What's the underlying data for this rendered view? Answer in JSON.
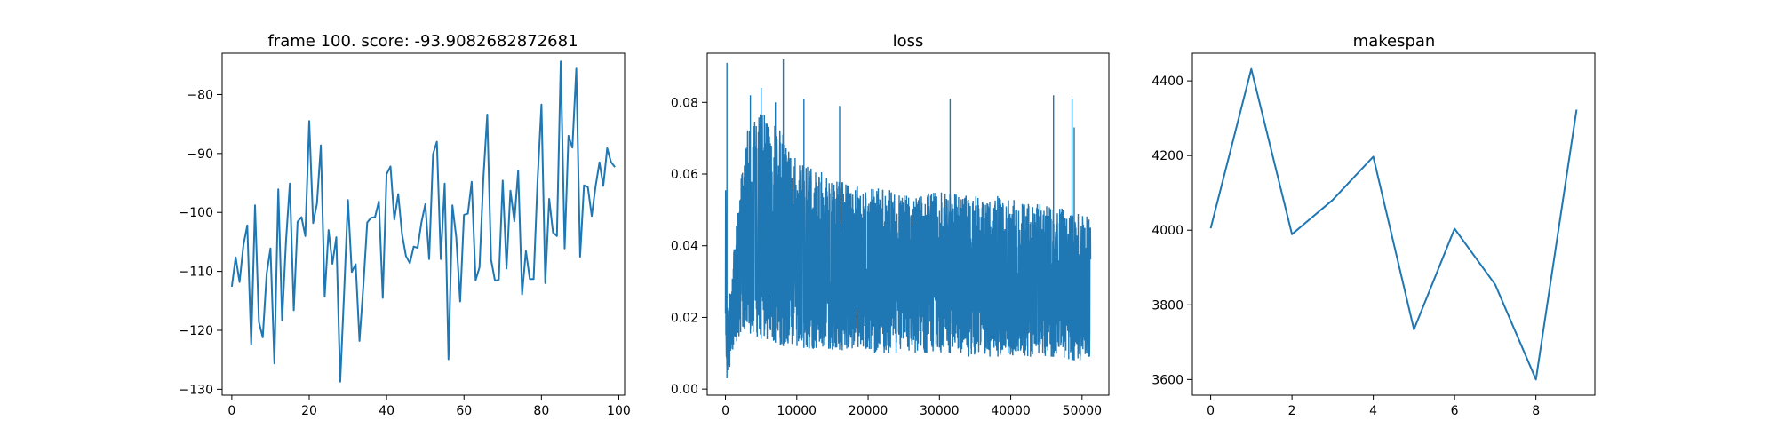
{
  "chart_data": [
    {
      "type": "line",
      "title": "frame 100. score: -93.9082682872681",
      "xlabel": "",
      "ylabel": "",
      "xlim": [
        -2.5,
        101.5
      ],
      "ylim": [
        -131,
        -73
      ],
      "xticks": [
        0,
        20,
        40,
        60,
        80,
        100
      ],
      "yticks": [
        -130,
        -120,
        -110,
        -100,
        -90,
        -80
      ],
      "series": [
        {
          "values": [
            -112.6,
            -107.6,
            -111.8,
            -105.5,
            -102.2,
            -122.4,
            -98.8,
            -118.6,
            -121.2,
            -110.4,
            -106.1,
            -125.6,
            -96.1,
            -118.3,
            -104.8,
            -95.1,
            -116.6,
            -101.6,
            -100.8,
            -104.0,
            -84.5,
            -101.8,
            -98.5,
            -88.6,
            -114.3,
            -103.0,
            -108.7,
            -104.2,
            -128.7,
            -113.9,
            -97.9,
            -110.1,
            -108.8,
            -121.8,
            -112.3,
            -101.7,
            -100.9,
            -100.8,
            -98.1,
            -114.5,
            -93.5,
            -92.2,
            -101.2,
            -96.9,
            -103.7,
            -107.4,
            -108.6,
            -105.8,
            -106.0,
            -101.7,
            -98.6,
            -107.9,
            -90.1,
            -88.0,
            -107.9,
            -95.1,
            -124.9,
            -98.8,
            -104.2,
            -115.1,
            -100.4,
            -100.2,
            -94.8,
            -111.5,
            -109.3,
            -94.3,
            -83.4,
            -108.0,
            -111.6,
            -111.4,
            -94.6,
            -109.5,
            -96.3,
            -101.5,
            -92.9,
            -113.9,
            -106.5,
            -111.3,
            -111.3,
            -94.6,
            -81.7,
            -112.0,
            -97.7,
            -103.4,
            -104.0,
            -74.4,
            -106.1,
            -87.0,
            -89.0,
            -75.6,
            -107.5,
            -95.4,
            -95.7,
            -100.6,
            -95.6,
            -91.5,
            -95.5,
            -89.1,
            -91.5,
            -92.3
          ]
        }
      ]
    },
    {
      "type": "line",
      "title": "loss",
      "xlabel": "",
      "ylabel": "",
      "xlim": [
        -2560,
        53760
      ],
      "ylim": [
        -0.0017,
        0.0937
      ],
      "xticks": [
        0,
        10000,
        20000,
        30000,
        40000,
        50000
      ],
      "yticks": [
        0.0,
        0.02,
        0.04,
        0.06,
        0.08
      ],
      "series": [
        {
          "note_envelope": "dense noisy signal; x = step, low/high = local envelope",
          "x": [
            0,
            150,
            300,
            600,
            1000,
            1500,
            2000,
            2500,
            3000,
            4000,
            5000,
            6000,
            7000,
            8000,
            9000,
            10000,
            12000,
            14000,
            16000,
            18000,
            20000,
            22000,
            24000,
            26000,
            28000,
            30000,
            32000,
            34000,
            36000,
            38000,
            40000,
            42000,
            44000,
            46000,
            48000,
            50000,
            51200
          ],
          "low": [
            0.004,
            0.003,
            0.003,
            0.006,
            0.009,
            0.012,
            0.014,
            0.016,
            0.016,
            0.015,
            0.014,
            0.013,
            0.013,
            0.012,
            0.012,
            0.012,
            0.011,
            0.011,
            0.011,
            0.01,
            0.01,
            0.01,
            0.01,
            0.01,
            0.01,
            0.01,
            0.01,
            0.009,
            0.009,
            0.009,
            0.009,
            0.009,
            0.009,
            0.009,
            0.008,
            0.008,
            0.008
          ],
          "high": [
            0.06,
            0.027,
            0.025,
            0.027,
            0.035,
            0.045,
            0.055,
            0.065,
            0.072,
            0.075,
            0.077,
            0.076,
            0.074,
            0.072,
            0.068,
            0.065,
            0.062,
            0.06,
            0.058,
            0.057,
            0.056,
            0.056,
            0.056,
            0.055,
            0.055,
            0.055,
            0.055,
            0.054,
            0.054,
            0.054,
            0.053,
            0.052,
            0.052,
            0.051,
            0.05,
            0.049,
            0.048
          ],
          "spikes": [
            [
              200,
              0.091
            ],
            [
              3500,
              0.082
            ],
            [
              5000,
              0.084
            ],
            [
              7000,
              0.08
            ],
            [
              8100,
              0.092
            ],
            [
              11000,
              0.081
            ],
            [
              16000,
              0.079
            ],
            [
              31500,
              0.081
            ],
            [
              46000,
              0.082
            ],
            [
              48600,
              0.081
            ],
            [
              48900,
              0.073
            ]
          ]
        }
      ]
    },
    {
      "type": "line",
      "title": "makespan",
      "xlabel": "",
      "ylabel": "",
      "xlim": [
        -0.45,
        9.45
      ],
      "ylim": [
        3558,
        4474
      ],
      "xticks": [
        0,
        2,
        4,
        6,
        8
      ],
      "yticks": [
        3600,
        3800,
        4000,
        4200,
        4400
      ],
      "series": [
        {
          "x": [
            0,
            1,
            2,
            3,
            4,
            5,
            6,
            7,
            8,
            9
          ],
          "values": [
            4005,
            4432,
            3989,
            4081,
            4197,
            3734,
            4004,
            3854,
            3600,
            4323
          ]
        }
      ]
    }
  ]
}
